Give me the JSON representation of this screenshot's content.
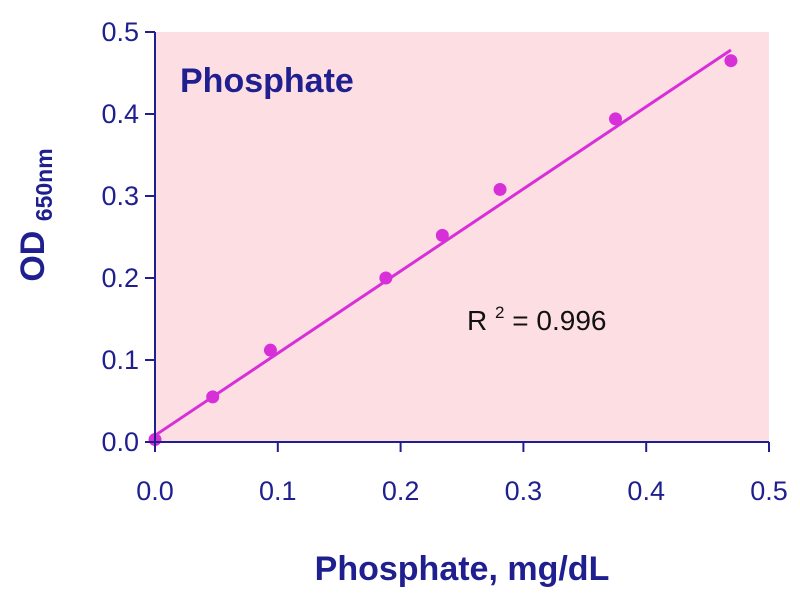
{
  "chart_data": {
    "type": "scatter",
    "title": "Phosphate",
    "xlabel": "Phosphate, mg/dL",
    "ylabel_main": "OD",
    "ylabel_sub": "650nm",
    "xlim": [
      0,
      0.5
    ],
    "ylim": [
      0,
      0.5
    ],
    "x_ticks": [
      "0.0",
      "0.1",
      "0.2",
      "0.3",
      "0.4",
      "0.5"
    ],
    "y_ticks": [
      "0.0",
      "0.1",
      "0.2",
      "0.3",
      "0.4",
      "0.5"
    ],
    "series": [
      {
        "x": [
          0.0,
          0.047,
          0.094,
          0.188,
          0.234,
          0.281,
          0.375,
          0.469
        ],
        "y": [
          0.003,
          0.055,
          0.112,
          0.2,
          0.252,
          0.308,
          0.394,
          0.465
        ]
      }
    ],
    "fit_line": {
      "x": [
        0.0,
        0.469
      ],
      "y": [
        0.008,
        0.478
      ]
    },
    "annotation": {
      "base": "R",
      "sup": "2",
      "rest": " = 0.996"
    },
    "grid": false,
    "colors": {
      "plot_background": "#fddfe3",
      "series": "#d830d8",
      "axis": "#1f1f8f"
    }
  }
}
